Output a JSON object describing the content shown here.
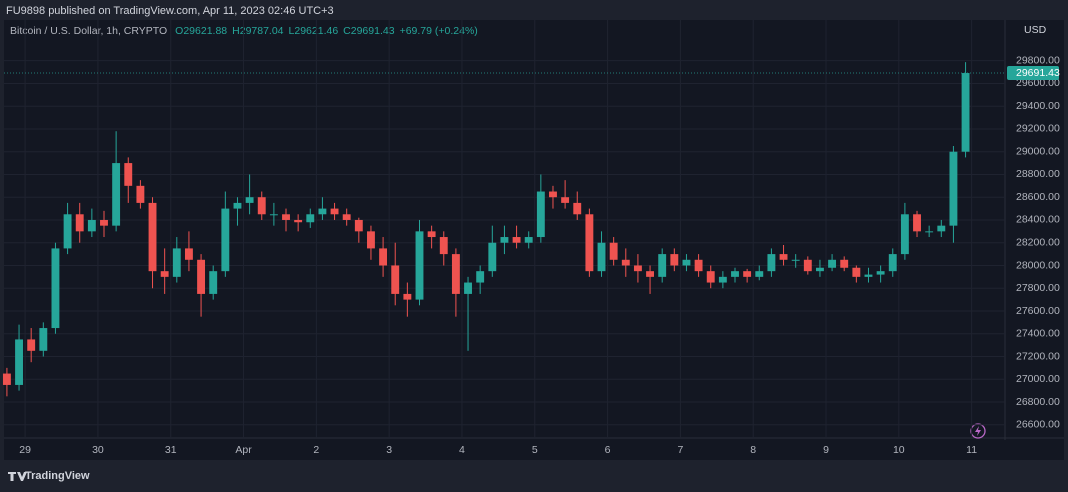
{
  "header": "FU9898 published on TradingView.com, Apr 11, 2023 02:46 UTC+3",
  "footer": "TradingView",
  "chart_data": {
    "type": "candlestick",
    "symbol": "Bitcoin / U.S. Dollar, 1h, CRYPTO",
    "ohlc": [
      "O29621.88",
      "H29787.04",
      "L29621.46",
      "C29691.43"
    ],
    "change": "+69.79 (+0.24%)",
    "currency": "USD",
    "up_color": "#26a69a",
    "down_color": "#ef5350",
    "grid": true,
    "x": [
      -6,
      -2,
      2,
      6,
      10,
      14,
      18,
      22,
      26,
      30,
      34,
      38,
      42,
      46,
      50,
      54,
      58,
      62,
      66,
      70,
      74,
      78,
      82,
      86,
      90,
      94,
      98,
      102,
      106,
      110,
      114,
      118,
      122,
      126,
      130,
      134,
      138,
      142,
      146,
      150,
      154,
      158,
      162,
      166,
      170,
      174,
      178,
      182,
      186,
      190,
      194,
      198,
      202,
      206,
      210,
      214,
      218,
      222,
      226,
      230,
      234,
      238,
      242,
      246,
      250,
      254,
      258,
      262,
      266,
      270,
      274,
      278,
      282,
      286,
      290,
      294,
      298,
      302,
      306,
      310
    ],
    "candles": [
      [
        27050,
        27100,
        26850,
        26950
      ],
      [
        26950,
        27480,
        26900,
        27350
      ],
      [
        27350,
        27450,
        27150,
        27250
      ],
      [
        27250,
        27500,
        27200,
        27450
      ],
      [
        27450,
        28200,
        27400,
        28150
      ],
      [
        28150,
        28550,
        28100,
        28450
      ],
      [
        28450,
        28550,
        28200,
        28300
      ],
      [
        28300,
        28500,
        28250,
        28400
      ],
      [
        28400,
        28480,
        28250,
        28350
      ],
      [
        28350,
        29180,
        28300,
        28900
      ],
      [
        28900,
        28950,
        28550,
        28700
      ],
      [
        28700,
        28750,
        28500,
        28550
      ],
      [
        28550,
        28600,
        27800,
        27950
      ],
      [
        27950,
        28150,
        27750,
        27900
      ],
      [
        27900,
        28250,
        27850,
        28150
      ],
      [
        28150,
        28300,
        27950,
        28050
      ],
      [
        28050,
        28100,
        27550,
        27750
      ],
      [
        27750,
        28000,
        27700,
        27950
      ],
      [
        27950,
        28650,
        27900,
        28500
      ],
      [
        28500,
        28600,
        28350,
        28550
      ],
      [
        28550,
        28800,
        28450,
        28600
      ],
      [
        28600,
        28650,
        28400,
        28450
      ],
      [
        28450,
        28550,
        28350,
        28450
      ],
      [
        28450,
        28500,
        28300,
        28400
      ],
      [
        28400,
        28450,
        28300,
        28380
      ],
      [
        28380,
        28500,
        28330,
        28450
      ],
      [
        28450,
        28600,
        28400,
        28500
      ],
      [
        28500,
        28550,
        28400,
        28450
      ],
      [
        28450,
        28500,
        28350,
        28400
      ],
      [
        28400,
        28420,
        28200,
        28300
      ],
      [
        28300,
        28350,
        28050,
        28150
      ],
      [
        28150,
        28250,
        27900,
        28000
      ],
      [
        28000,
        28200,
        27650,
        27750
      ],
      [
        27750,
        27850,
        27550,
        27700
      ],
      [
        27700,
        28400,
        27650,
        28300
      ],
      [
        28300,
        28350,
        28150,
        28250
      ],
      [
        28250,
        28300,
        28000,
        28100
      ],
      [
        28100,
        28150,
        27550,
        27750
      ],
      [
        27750,
        27900,
        27250,
        27850
      ],
      [
        27850,
        28000,
        27750,
        27950
      ],
      [
        27950,
        28350,
        27900,
        28200
      ],
      [
        28200,
        28350,
        28100,
        28250
      ],
      [
        28250,
        28350,
        28150,
        28200
      ],
      [
        28200,
        28300,
        28150,
        28250
      ],
      [
        28250,
        28800,
        28200,
        28650
      ],
      [
        28650,
        28700,
        28500,
        28600
      ],
      [
        28600,
        28750,
        28500,
        28550
      ],
      [
        28550,
        28650,
        28400,
        28450
      ],
      [
        28450,
        28500,
        27900,
        27950
      ],
      [
        27950,
        28300,
        27900,
        28200
      ],
      [
        28200,
        28250,
        28000,
        28050
      ],
      [
        28050,
        28150,
        27900,
        28000
      ],
      [
        28000,
        28100,
        27850,
        27950
      ],
      [
        27950,
        28000,
        27750,
        27900
      ],
      [
        27900,
        28150,
        27850,
        28100
      ],
      [
        28100,
        28150,
        27950,
        28000
      ],
      [
        28000,
        28100,
        27950,
        28050
      ],
      [
        28050,
        28100,
        27900,
        27950
      ],
      [
        27950,
        28000,
        27800,
        27850
      ],
      [
        27850,
        27950,
        27800,
        27900
      ],
      [
        27900,
        27980,
        27850,
        27950
      ],
      [
        27950,
        27970,
        27850,
        27900
      ],
      [
        27900,
        28000,
        27870,
        27950
      ],
      [
        27950,
        28150,
        27900,
        28100
      ],
      [
        28100,
        28180,
        28000,
        28050
      ],
      [
        28050,
        28100,
        27980,
        28050
      ],
      [
        28050,
        28080,
        27920,
        27950
      ],
      [
        27950,
        28050,
        27900,
        27980
      ],
      [
        27980,
        28100,
        27950,
        28050
      ],
      [
        28050,
        28080,
        27950,
        27980
      ],
      [
        27980,
        28000,
        27850,
        27900
      ],
      [
        27900,
        27980,
        27850,
        27920
      ],
      [
        27920,
        28000,
        27850,
        27950
      ],
      [
        27950,
        28150,
        27900,
        28100
      ],
      [
        28100,
        28550,
        28050,
        28450
      ],
      [
        28450,
        28480,
        28250,
        28300
      ],
      [
        28300,
        28350,
        28250,
        28300
      ],
      [
        28300,
        28400,
        28250,
        28350
      ],
      [
        28350,
        29050,
        28200,
        29000
      ],
      [
        29000,
        29787.04,
        28950,
        29691.43
      ]
    ],
    "xlim": [
      -6.3,
      323
    ],
    "xticks": [
      {
        "value": 0,
        "label": "29"
      },
      {
        "value": 24,
        "label": "30"
      },
      {
        "value": 48,
        "label": "31"
      },
      {
        "value": 72,
        "label": "Apr"
      },
      {
        "value": 96,
        "label": "2"
      },
      {
        "value": 120,
        "label": "3"
      },
      {
        "value": 144,
        "label": "4"
      },
      {
        "value": 168,
        "label": "5"
      },
      {
        "value": 192,
        "label": "6"
      },
      {
        "value": 216,
        "label": "7"
      },
      {
        "value": 240,
        "label": "8"
      },
      {
        "value": 264,
        "label": "9"
      },
      {
        "value": 288,
        "label": "10"
      },
      {
        "value": 312,
        "label": "11"
      }
    ],
    "ylim": [
      26510,
      30140
    ],
    "yticks": [
      {
        "value": 26600,
        "label": "26600.00"
      },
      {
        "value": 26800,
        "label": "26800.00"
      },
      {
        "value": 27000,
        "label": "27000.00"
      },
      {
        "value": 27200,
        "label": "27200.00"
      },
      {
        "value": 27400,
        "label": "27400.00"
      },
      {
        "value": 27600,
        "label": "27600.00"
      },
      {
        "value": 27800,
        "label": "27800.00"
      },
      {
        "value": 28000,
        "label": "28000.00"
      },
      {
        "value": 28200,
        "label": "28200.00"
      },
      {
        "value": 28400,
        "label": "28400.00"
      },
      {
        "value": 28600,
        "label": "28600.00"
      },
      {
        "value": 28800,
        "label": "28800.00"
      },
      {
        "value": 29000,
        "label": "29000.00"
      },
      {
        "value": 29200,
        "label": "29200.00"
      },
      {
        "value": 29400,
        "label": "29400.00"
      },
      {
        "value": 29600,
        "label": "29600.00"
      },
      {
        "value": 29800,
        "label": "29800.00"
      }
    ]
  }
}
